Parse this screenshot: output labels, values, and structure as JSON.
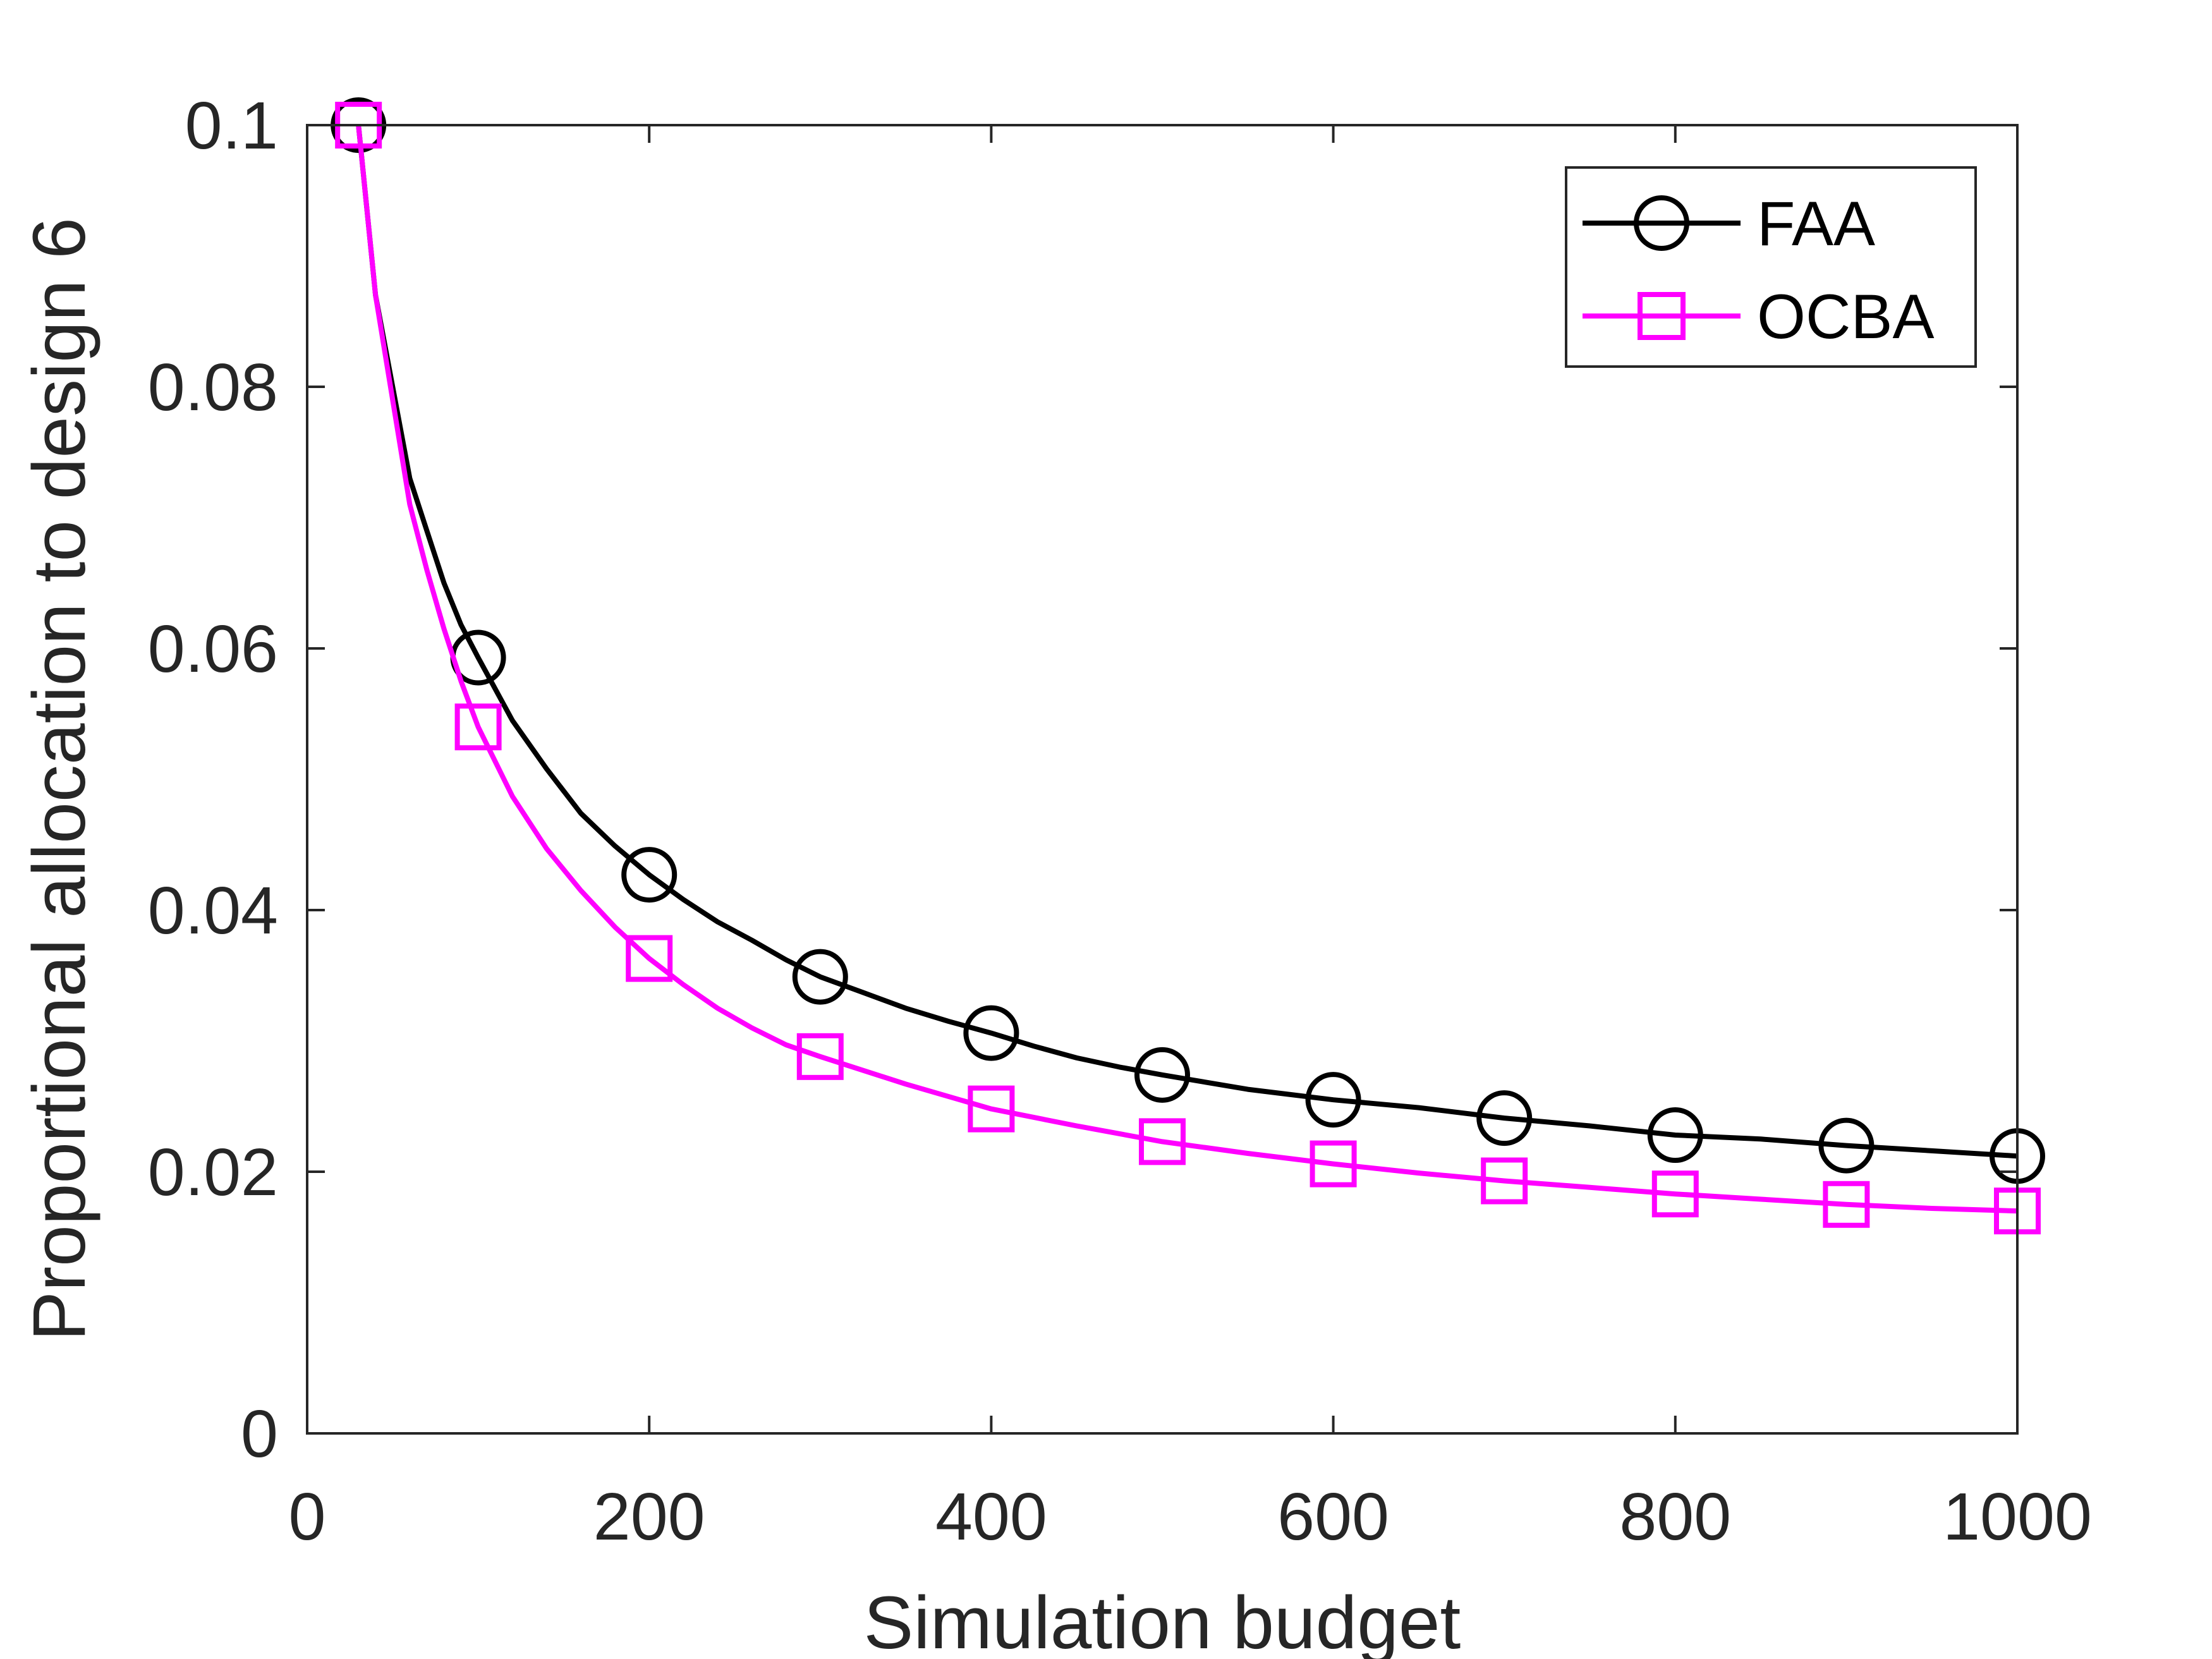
{
  "chart_data": {
    "type": "line",
    "title": "",
    "xlabel": "Simulation budget",
    "ylabel": "Proportional allocation to design 6",
    "xlim": [
      0,
      1000
    ],
    "ylim": [
      0,
      0.1
    ],
    "x_ticks": [
      0,
      200,
      400,
      600,
      800,
      1000
    ],
    "x_tick_labels": [
      "0",
      "200",
      "400",
      "600",
      "800",
      "1000"
    ],
    "y_ticks": [
      0,
      0.02,
      0.04,
      0.06,
      0.08,
      0.1
    ],
    "y_tick_labels": [
      "0",
      "0.02",
      "0.04",
      "0.06",
      "0.08",
      "0.1"
    ],
    "grid": false,
    "legend_position": "top-right",
    "series": [
      {
        "name": "FAA",
        "color": "#000000",
        "marker": "circle",
        "x": [
          30,
          40,
          50,
          60,
          70,
          80,
          90,
          100,
          120,
          140,
          160,
          180,
          200,
          220,
          240,
          260,
          280,
          300,
          325,
          350,
          375,
          400,
          425,
          450,
          475,
          500,
          550,
          600,
          650,
          700,
          750,
          800,
          850,
          900,
          950,
          1000
        ],
        "y": [
          0.1,
          0.087,
          0.08,
          0.073,
          0.069,
          0.065,
          0.0618,
          0.0593,
          0.0545,
          0.0508,
          0.0474,
          0.0449,
          0.0427,
          0.0408,
          0.0391,
          0.0377,
          0.0362,
          0.0349,
          0.0337,
          0.0325,
          0.0315,
          0.0306,
          0.0296,
          0.0287,
          0.028,
          0.0274,
          0.0263,
          0.0255,
          0.0249,
          0.0241,
          0.0235,
          0.0228,
          0.0225,
          0.022,
          0.0216,
          0.0212
        ],
        "marker_x": [
          30,
          100,
          200,
          300,
          400,
          500,
          600,
          700,
          800,
          900,
          1000
        ],
        "marker_y": [
          0.1,
          0.0593,
          0.0427,
          0.0349,
          0.0306,
          0.0274,
          0.0255,
          0.0241,
          0.0228,
          0.022,
          0.0212
        ]
      },
      {
        "name": "OCBA",
        "color": "#ff00ff",
        "marker": "square",
        "x": [
          30,
          40,
          50,
          60,
          70,
          80,
          90,
          100,
          120,
          140,
          160,
          180,
          200,
          220,
          240,
          260,
          280,
          300,
          350,
          400,
          450,
          500,
          550,
          600,
          650,
          700,
          750,
          800,
          850,
          900,
          950,
          1000
        ],
        "y": [
          0.1,
          0.087,
          0.079,
          0.071,
          0.066,
          0.0615,
          0.0575,
          0.054,
          0.0487,
          0.0447,
          0.0415,
          0.0387,
          0.0363,
          0.0343,
          0.0325,
          0.031,
          0.0297,
          0.0288,
          0.0267,
          0.0248,
          0.0235,
          0.0223,
          0.0214,
          0.0206,
          0.0199,
          0.0193,
          0.0188,
          0.0183,
          0.0179,
          0.0175,
          0.0172,
          0.017
        ],
        "marker_x": [
          30,
          100,
          200,
          300,
          400,
          500,
          600,
          700,
          800,
          900,
          1000
        ],
        "marker_y": [
          0.1,
          0.054,
          0.0363,
          0.0288,
          0.0248,
          0.0223,
          0.0206,
          0.0193,
          0.0183,
          0.0175,
          0.017
        ]
      }
    ]
  }
}
